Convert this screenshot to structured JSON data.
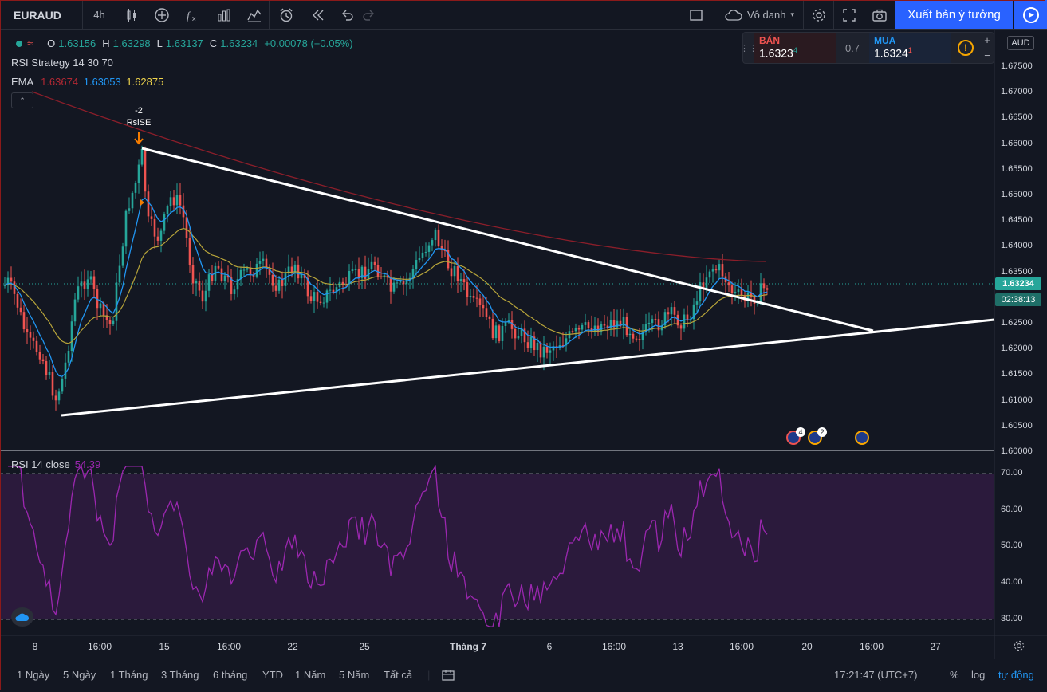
{
  "toolbar": {
    "symbol": "EURAUD",
    "interval": "4h",
    "layout_name": "Vô danh",
    "publish_label": "Xuất bản ý tưởng"
  },
  "legend": {
    "o_label": "O",
    "o_value": "1.63156",
    "h_label": "H",
    "h_value": "1.63298",
    "l_label": "L",
    "l_value": "1.63137",
    "c_label": "C",
    "c_value": "1.63234",
    "change": "+0.00078 (+0.05%)",
    "strategy": "RSI Strategy 14 30 70",
    "ema_label": "EMA",
    "ema_values": [
      "1.63674",
      "1.63053",
      "1.62875"
    ]
  },
  "trade": {
    "sell_label": "BÁN",
    "sell_price": "1.6323",
    "sell_sup": "4",
    "spread": "0.7",
    "buy_label": "MUA",
    "buy_price": "1.6324",
    "buy_sup": "1",
    "info": "!",
    "plus": "+",
    "minus": "−"
  },
  "currency": "AUD",
  "price_axis": [
    "1.67500",
    "1.67000",
    "1.66500",
    "1.66000",
    "1.65500",
    "1.65000",
    "1.64500",
    "1.64000",
    "1.63500",
    "1.63000",
    "1.62500",
    "1.62000",
    "1.61500",
    "1.61000",
    "1.60500",
    "1.60000"
  ],
  "current_price": "1.63234",
  "countdown": "02:38:13",
  "signal": {
    "qty": "-2",
    "name": "RsiSE"
  },
  "rsi": {
    "label": "RSI 14 close",
    "value": "54.39",
    "axis": [
      "70.00",
      "60.00",
      "50.00",
      "40.00",
      "30.00"
    ]
  },
  "events": [
    {
      "badge": "4",
      "color": "red"
    },
    {
      "badge": "2",
      "color": "orange"
    },
    {
      "badge": "",
      "color": "orange"
    }
  ],
  "time_axis": [
    {
      "label": "8",
      "bold": false
    },
    {
      "label": "16:00",
      "bold": false
    },
    {
      "label": "15",
      "bold": false
    },
    {
      "label": "16:00",
      "bold": false
    },
    {
      "label": "22",
      "bold": false
    },
    {
      "label": "25",
      "bold": false
    },
    {
      "label": "Tháng 7",
      "bold": true
    },
    {
      "label": "6",
      "bold": false
    },
    {
      "label": "16:00",
      "bold": false
    },
    {
      "label": "13",
      "bold": false
    },
    {
      "label": "16:00",
      "bold": false
    },
    {
      "label": "20",
      "bold": false
    },
    {
      "label": "16:00",
      "bold": false
    },
    {
      "label": "27",
      "bold": false
    }
  ],
  "ranges": [
    "1 Ngày",
    "5 Ngày",
    "1 Tháng",
    "3 Tháng",
    "6 tháng",
    "YTD",
    "1 Năm",
    "5 Năm",
    "Tất cả"
  ],
  "bottom": {
    "clock": "17:21:47 (UTC+7)",
    "percent": "%",
    "log": "log",
    "auto": "tự động"
  },
  "colors": {
    "up": "#26a69a",
    "down": "#ef5350",
    "ema_long": "#b22833",
    "ema_fast": "#2196f3",
    "ema_mid": "#c8b53a",
    "rsi": "#9c27b0",
    "accent": "#2962ff"
  }
}
